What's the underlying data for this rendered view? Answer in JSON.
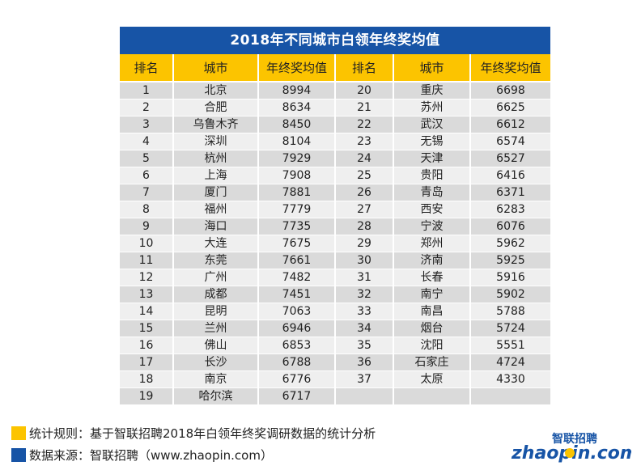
{
  "title": "2018年不同城市白领年终奖均值",
  "headers": [
    "排名",
    "城市",
    "年终奖均值",
    "排名",
    "城市",
    "年终奖均值"
  ],
  "rows": [
    [
      "1",
      "北京",
      "8994",
      "20",
      "重庆",
      "6698"
    ],
    [
      "2",
      "合肥",
      "8634",
      "21",
      "苏州",
      "6625"
    ],
    [
      "3",
      "乌鲁木齐",
      "8450",
      "22",
      "武汉",
      "6612"
    ],
    [
      "4",
      "深圳",
      "8104",
      "23",
      "无锡",
      "6574"
    ],
    [
      "5",
      "杭州",
      "7929",
      "24",
      "天津",
      "6527"
    ],
    [
      "6",
      "上海",
      "7908",
      "25",
      "贵阳",
      "6416"
    ],
    [
      "7",
      "厦门",
      "7881",
      "26",
      "青岛",
      "6371"
    ],
    [
      "8",
      "福州",
      "7779",
      "27",
      "西安",
      "6283"
    ],
    [
      "9",
      "海口",
      "7735",
      "28",
      "宁波",
      "6076"
    ],
    [
      "10",
      "大连",
      "7675",
      "29",
      "郑州",
      "5962"
    ],
    [
      "11",
      "东莞",
      "7661",
      "30",
      "济南",
      "5925"
    ],
    [
      "12",
      "广州",
      "7482",
      "31",
      "长春",
      "5916"
    ],
    [
      "13",
      "成都",
      "7451",
      "32",
      "南宁",
      "5902"
    ],
    [
      "14",
      "昆明",
      "7063",
      "33",
      "南昌",
      "5788"
    ],
    [
      "15",
      "兰州",
      "6946",
      "34",
      "烟台",
      "5724"
    ],
    [
      "16",
      "佛山",
      "6853",
      "35",
      "沈阳",
      "5551"
    ],
    [
      "17",
      "长沙",
      "6788",
      "36",
      "石家庄",
      "4724"
    ],
    [
      "18",
      "南京",
      "6776",
      "37",
      "太原",
      "4330"
    ],
    [
      "19",
      "哈尔滨",
      "6717",
      "",
      "",
      ""
    ]
  ],
  "legend": {
    "rule": {
      "text": "统计规则：基于智联招聘2018年白领年终奖调研数据的统计分析",
      "color": "#fcc400"
    },
    "source": {
      "text": "数据来源：智联招聘（www.zhaopin.com）",
      "color": "#1754a6"
    }
  },
  "logo": {
    "brand_cn": "智联招聘",
    "brand_url": "zhaopin.com"
  },
  "colors": {
    "header_blue": "#1754a6",
    "header_yellow": "#fcc400",
    "row_dark": "#dadada",
    "row_light": "#efefef"
  }
}
